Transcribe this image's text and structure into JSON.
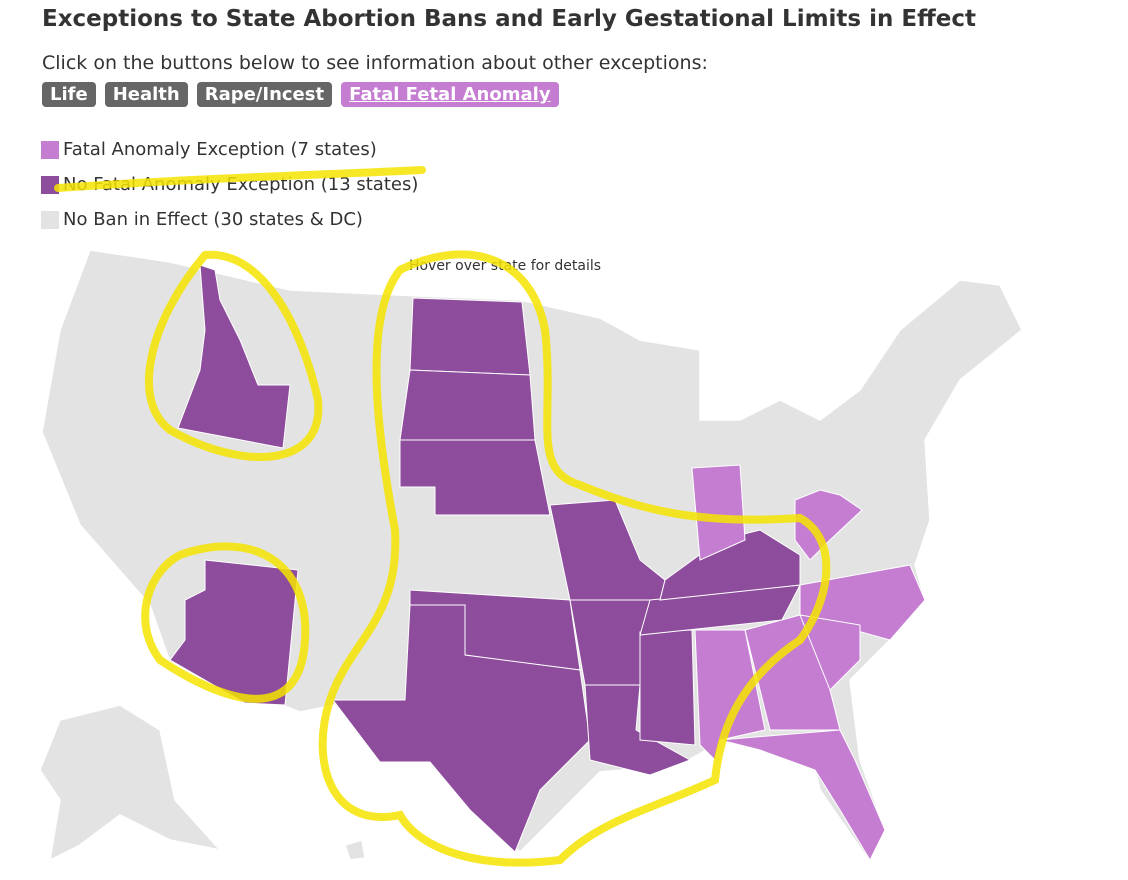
{
  "header": {
    "title": "Exceptions to State Abortion Bans and Early Gestational Limits in Effect",
    "instruction": "Click on the buttons below to see information about other exceptions:"
  },
  "buttons": [
    "Life",
    "Health",
    "Rape/Incest",
    "Fatal Fetal Anomaly"
  ],
  "legend": [
    {
      "label": "Fatal Anomaly Exception (7 states)",
      "color": "#c57dd2"
    },
    {
      "label": "No Fatal Anomaly Exception (13 states)",
      "color": "#8e4c9d"
    },
    {
      "label": "No Ban in Effect (30 states & DC)",
      "color": "#e3e3e3"
    }
  ],
  "map": {
    "hint": "Hover over state for details"
  }
}
